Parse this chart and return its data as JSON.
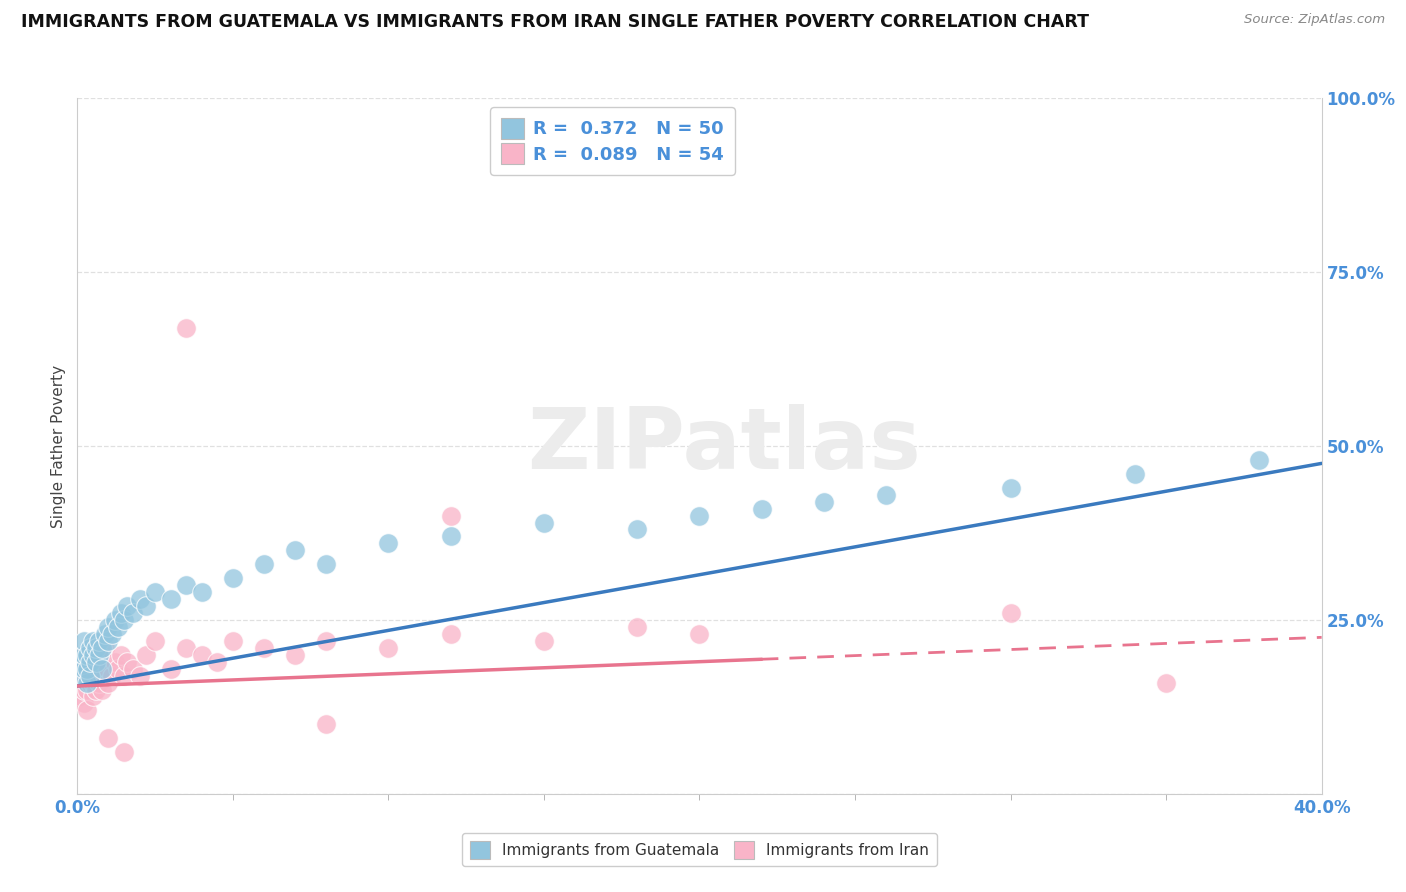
{
  "title": "IMMIGRANTS FROM GUATEMALA VS IMMIGRANTS FROM IRAN SINGLE FATHER POVERTY CORRELATION CHART",
  "source": "Source: ZipAtlas.com",
  "ylabel": "Single Father Poverty",
  "legend1_label": "R =  0.372   N = 50",
  "legend2_label": "R =  0.089   N = 54",
  "legend_bottom_label1": "Immigrants from Guatemala",
  "legend_bottom_label2": "Immigrants from Iran",
  "guatemala_color": "#92c5de",
  "iran_color": "#f9b4c8",
  "guatemala_line_color": "#3a7abf",
  "iran_line_color": "#e8748e",
  "background_color": "#ffffff",
  "grid_color": "#e0e0e0",
  "xlim": [
    0.0,
    0.4
  ],
  "ylim": [
    0.0,
    1.0
  ],
  "tick_color": "#4a90d9",
  "watermark_color": "#ececec",
  "ytick_labels": [
    "",
    "25.0%",
    "50.0%",
    "75.0%",
    "100.0%"
  ],
  "ytick_values": [
    0.0,
    0.25,
    0.5,
    0.75,
    1.0
  ],
  "xtick_labels": [
    "0.0%",
    "40.0%"
  ],
  "xtick_values": [
    0.0,
    0.4
  ],
  "guatemala_x": [
    0.001,
    0.001,
    0.002,
    0.002,
    0.002,
    0.003,
    0.003,
    0.003,
    0.004,
    0.004,
    0.004,
    0.005,
    0.005,
    0.006,
    0.006,
    0.007,
    0.007,
    0.008,
    0.008,
    0.009,
    0.01,
    0.01,
    0.011,
    0.012,
    0.013,
    0.014,
    0.015,
    0.016,
    0.018,
    0.02,
    0.022,
    0.025,
    0.03,
    0.035,
    0.04,
    0.05,
    0.06,
    0.07,
    0.08,
    0.1,
    0.12,
    0.15,
    0.18,
    0.2,
    0.22,
    0.24,
    0.26,
    0.3,
    0.34,
    0.38
  ],
  "guatemala_y": [
    0.17,
    0.19,
    0.18,
    0.2,
    0.22,
    0.16,
    0.18,
    0.2,
    0.17,
    0.19,
    0.21,
    0.2,
    0.22,
    0.19,
    0.21,
    0.2,
    0.22,
    0.18,
    0.21,
    0.23,
    0.22,
    0.24,
    0.23,
    0.25,
    0.24,
    0.26,
    0.25,
    0.27,
    0.26,
    0.28,
    0.27,
    0.29,
    0.28,
    0.3,
    0.29,
    0.31,
    0.33,
    0.35,
    0.33,
    0.36,
    0.37,
    0.39,
    0.38,
    0.4,
    0.41,
    0.42,
    0.43,
    0.44,
    0.46,
    0.48
  ],
  "iran_x": [
    0.001,
    0.001,
    0.002,
    0.002,
    0.002,
    0.003,
    0.003,
    0.003,
    0.004,
    0.004,
    0.004,
    0.005,
    0.005,
    0.005,
    0.006,
    0.006,
    0.007,
    0.007,
    0.008,
    0.008,
    0.009,
    0.009,
    0.01,
    0.01,
    0.011,
    0.012,
    0.013,
    0.014,
    0.015,
    0.016,
    0.018,
    0.02,
    0.022,
    0.025,
    0.03,
    0.035,
    0.04,
    0.045,
    0.05,
    0.06,
    0.07,
    0.08,
    0.1,
    0.12,
    0.15,
    0.18,
    0.2,
    0.035,
    0.12,
    0.3,
    0.01,
    0.015,
    0.08,
    0.35
  ],
  "iran_y": [
    0.14,
    0.16,
    0.13,
    0.15,
    0.18,
    0.15,
    0.17,
    0.12,
    0.16,
    0.18,
    0.2,
    0.14,
    0.16,
    0.19,
    0.15,
    0.17,
    0.16,
    0.18,
    0.15,
    0.17,
    0.19,
    0.21,
    0.16,
    0.18,
    0.17,
    0.19,
    0.18,
    0.2,
    0.17,
    0.19,
    0.18,
    0.17,
    0.2,
    0.22,
    0.18,
    0.21,
    0.2,
    0.19,
    0.22,
    0.21,
    0.2,
    0.22,
    0.21,
    0.23,
    0.22,
    0.24,
    0.23,
    0.67,
    0.4,
    0.26,
    0.08,
    0.06,
    0.1,
    0.16
  ],
  "guat_line_x0": 0.0,
  "guat_line_y0": 0.155,
  "guat_line_x1": 0.4,
  "guat_line_y1": 0.475,
  "iran_line_x0": 0.0,
  "iran_line_y0": 0.155,
  "iran_line_x1": 0.4,
  "iran_line_y1": 0.225
}
